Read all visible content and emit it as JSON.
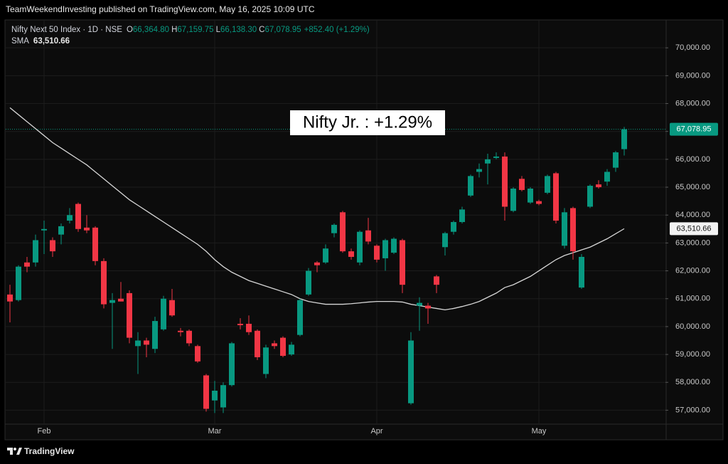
{
  "header": "TeamWeekendInvesting published on TradingView.com, May 16, 2025 10:09 UTC",
  "footer": "TradingView",
  "chart_data": {
    "type": "candlestick",
    "legend": {
      "symbol": "Nifty Next 50 Index · 1D · NSE",
      "ohlc": [
        {
          "key": "O",
          "value": "66,364.80"
        },
        {
          "key": "H",
          "value": "67,159.75"
        },
        {
          "key": "L",
          "value": "66,138.30"
        },
        {
          "key": "C",
          "value": "67,078.95"
        }
      ],
      "change": "+852.40 (+1.29%)",
      "sma_name": "SMA",
      "sma_value": "63,510.66"
    },
    "annotation": "Nifty Jr. : +1.29%",
    "last_price_label": "67,078.95",
    "sma_price_label": "63,510.66",
    "up_color": "#089981",
    "down_color": "#f23645",
    "sma_color": "#d6d6d6",
    "grid": true,
    "categories": [
      null,
      null,
      null,
      null,
      "Feb",
      null,
      null,
      null,
      null,
      null,
      null,
      null,
      null,
      null,
      null,
      null,
      null,
      null,
      null,
      null,
      null,
      null,
      null,
      null,
      "Mar",
      null,
      null,
      null,
      null,
      null,
      null,
      null,
      null,
      null,
      null,
      null,
      null,
      null,
      null,
      null,
      null,
      null,
      null,
      "Apr",
      null,
      null,
      null,
      null,
      null,
      null,
      null,
      null,
      null,
      null,
      null,
      null,
      null,
      null,
      null,
      null,
      null,
      null,
      "May",
      null,
      null,
      null,
      null,
      null,
      null,
      null,
      null,
      null,
      null
    ],
    "open": [
      61150,
      60950,
      62300,
      62300,
      63450,
      63100,
      63300,
      63800,
      64400,
      63550,
      63550,
      62350,
      60850,
      61000,
      61200,
      59300,
      59500,
      59200,
      59900,
      60950,
      59850,
      59850,
      59300,
      58250,
      57350,
      57100,
      57900,
      60100,
      60100,
      59850,
      58300,
      59400,
      59600,
      59000,
      59700,
      61150,
      62300,
      62300,
      63350,
      64100,
      62700,
      62300,
      63450,
      62900,
      62450,
      62650,
      63100,
      57250,
      60750,
      60750,
      61800,
      62850,
      63400,
      63750,
      64700,
      65550,
      65850,
      66050,
      66100,
      64150,
      65300,
      64450,
      64500,
      64800,
      65500,
      62900,
      64250,
      61400,
      64300,
      65100,
      65200,
      65700,
      66364.8
    ],
    "high": [
      61500,
      62200,
      62500,
      63300,
      63800,
      63200,
      63700,
      64250,
      64450,
      64000,
      63600,
      62450,
      61200,
      61600,
      61300,
      59800,
      59600,
      60350,
      61100,
      61350,
      59950,
      59900,
      59350,
      58300,
      58050,
      58000,
      59450,
      60300,
      60400,
      59900,
      59350,
      59500,
      59650,
      59450,
      61000,
      62100,
      62350,
      62950,
      63700,
      64150,
      62800,
      63450,
      63900,
      62950,
      63150,
      63200,
      63150,
      59800,
      61050,
      60850,
      61850,
      63400,
      63800,
      64300,
      65450,
      65850,
      66200,
      66250,
      66250,
      65000,
      65400,
      65000,
      64550,
      65450,
      65550,
      64250,
      64300,
      62600,
      65100,
      65250,
      65650,
      66300,
      67159.75
    ],
    "low": [
      60150,
      60900,
      61950,
      62150,
      62600,
      62500,
      62950,
      63700,
      63400,
      63350,
      62200,
      60650,
      59200,
      60900,
      59400,
      58300,
      58900,
      59050,
      59850,
      60350,
      59650,
      59300,
      58700,
      56950,
      56900,
      56900,
      57850,
      59900,
      59700,
      58800,
      58150,
      59200,
      58900,
      58950,
      59650,
      61100,
      61950,
      62250,
      63200,
      62650,
      62400,
      62200,
      62950,
      62300,
      62000,
      62600,
      61200,
      57200,
      59850,
      60100,
      61200,
      62550,
      63300,
      63700,
      64650,
      65350,
      65100,
      66000,
      63800,
      64100,
      64850,
      64400,
      64350,
      64750,
      63700,
      62800,
      62400,
      61350,
      64250,
      64950,
      65050,
      65550,
      66138.3
    ],
    "close": [
      60900,
      62150,
      62150,
      63100,
      63500,
      62700,
      63600,
      64000,
      63500,
      63450,
      62350,
      60800,
      60950,
      60900,
      59600,
      59500,
      59350,
      60200,
      61000,
      60400,
      59800,
      59400,
      58750,
      57050,
      57700,
      57900,
      59400,
      60050,
      59800,
      58900,
      59250,
      59300,
      58950,
      59350,
      60950,
      62000,
      62200,
      62800,
      63650,
      62700,
      62500,
      63400,
      63050,
      62400,
      63100,
      63150,
      61500,
      59500,
      60850,
      60650,
      61500,
      63350,
      63750,
      64200,
      65400,
      65650,
      66000,
      66100,
      64300,
      64950,
      64900,
      64950,
      64400,
      65400,
      63800,
      64100,
      62700,
      62500,
      65050,
      65000,
      65550,
      66250,
      67078.95
    ],
    "sma": [
      67850,
      67600,
      67350,
      67100,
      66850,
      66600,
      66400,
      66200,
      66000,
      65800,
      65550,
      65300,
      65050,
      64800,
      64550,
      64350,
      64150,
      63950,
      63750,
      63550,
      63350,
      63150,
      62950,
      62700,
      62400,
      62150,
      61950,
      61800,
      61650,
      61550,
      61450,
      61350,
      61250,
      61150,
      61000,
      60900,
      60850,
      60800,
      60800,
      60800,
      60820,
      60850,
      60880,
      60900,
      60900,
      60900,
      60880,
      60800,
      60750,
      60700,
      60650,
      60600,
      60650,
      60720,
      60800,
      60900,
      61050,
      61200,
      61400,
      61500,
      61650,
      61800,
      62000,
      62200,
      62400,
      62550,
      62650,
      62750,
      62850,
      63000,
      63150,
      63330,
      63510.66
    ],
    "ylim": [
      56500,
      71000
    ],
    "yticks": [
      {
        "value": 57000,
        "label": "57,000.00"
      },
      {
        "value": 58000,
        "label": "58,000.00"
      },
      {
        "value": 59000,
        "label": "59,000.00"
      },
      {
        "value": 60000,
        "label": "60,000.00"
      },
      {
        "value": 61000,
        "label": "61,000.00"
      },
      {
        "value": 62000,
        "label": "62,000.00"
      },
      {
        "value": 63000,
        "label": "63,000.00"
      },
      {
        "value": 64000,
        "label": "64,000.00"
      },
      {
        "value": 65000,
        "label": "65,000.00"
      },
      {
        "value": 66000,
        "label": "66,000.00"
      },
      {
        "value": 67000,
        "label": "67,000.00"
      },
      {
        "value": 68000,
        "label": "68,000.00"
      },
      {
        "value": 69000,
        "label": "69,000.00"
      },
      {
        "value": 70000,
        "label": "70,000.00"
      }
    ]
  }
}
